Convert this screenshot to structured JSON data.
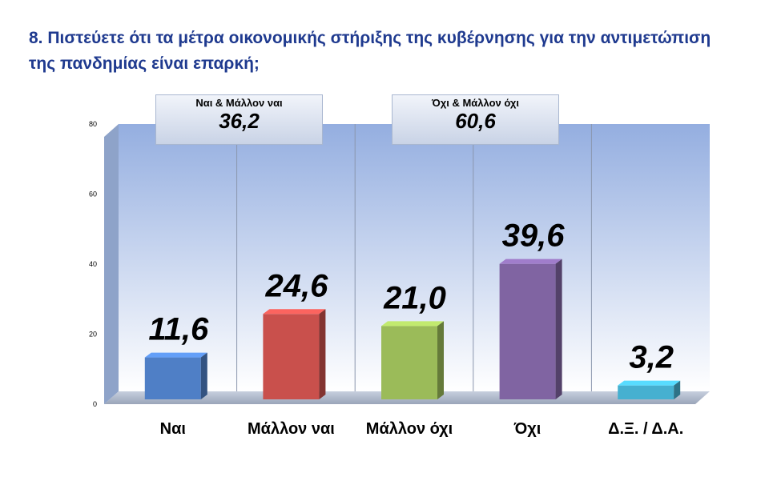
{
  "question": "8. Πιστεύετε ότι τα μέτρα οικονομικής στήριξης της κυβέρνησης για την αντιμετώπιση της πανδημίας είναι επαρκή;",
  "summary": [
    {
      "label": "Ναι & Μάλλον ναι",
      "value": "36,2"
    },
    {
      "label": "Όχι & Μάλλον όχι",
      "value": "60,6"
    }
  ],
  "colors": {
    "title": "#1f3a8f",
    "wall_top": "#94aee0",
    "wall_bottom": "#ffffff",
    "bars": [
      "#4f7fc6",
      "#c9504c",
      "#9bbb59",
      "#8064a2",
      "#46b0d0"
    ]
  },
  "chart_data": {
    "type": "bar",
    "categories": [
      "Ναι",
      "Μάλλον ναι",
      "Μάλλον όχι",
      "Όχι",
      "Δ.Ξ. / Δ.Α."
    ],
    "values": [
      11.6,
      24.6,
      21.0,
      39.6,
      3.2
    ],
    "value_labels": [
      "11,6",
      "24,6",
      "21,0",
      "39,6",
      "3,2"
    ],
    "y_ticks": [
      0,
      20,
      40,
      60,
      80
    ],
    "ylim": [
      0,
      80
    ],
    "grid": "vertical separators only",
    "legend": "none"
  }
}
